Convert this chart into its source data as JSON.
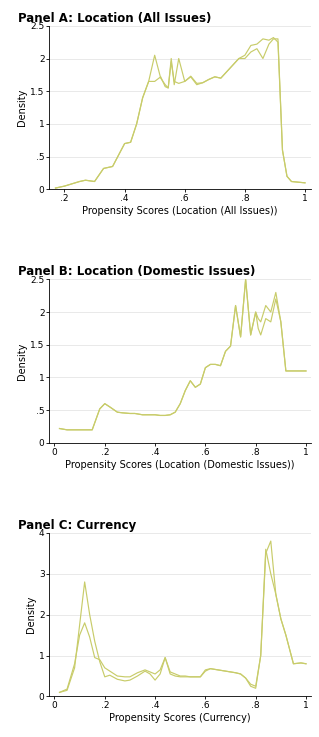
{
  "panel_a": {
    "title": "Panel A: Location (All Issues)",
    "xlabel": "Propensity Scores (Location (All Issues))",
    "ylabel": "Density",
    "ylim": [
      0,
      2.5
    ],
    "yticks": [
      0,
      0.5,
      1.0,
      1.5,
      2.0,
      2.5
    ],
    "ytick_labels": [
      "0",
      ".5",
      "1",
      "1.5",
      "2",
      "2.5"
    ],
    "xlim": [
      0.15,
      1.02
    ],
    "xticks": [
      0.2,
      0.4,
      0.6,
      0.8,
      1.0
    ],
    "xtick_labels": [
      ".2",
      ".4",
      ".6",
      ".8",
      "1"
    ],
    "line1_x": [
      0.17,
      0.2,
      0.25,
      0.27,
      0.3,
      0.33,
      0.36,
      0.4,
      0.42,
      0.44,
      0.46,
      0.48,
      0.5,
      0.52,
      0.535,
      0.545,
      0.555,
      0.565,
      0.58,
      0.6,
      0.62,
      0.64,
      0.66,
      0.68,
      0.7,
      0.72,
      0.74,
      0.76,
      0.78,
      0.8,
      0.82,
      0.84,
      0.86,
      0.88,
      0.895,
      0.91,
      0.925,
      0.94,
      0.955,
      1.0
    ],
    "line1_y": [
      0.02,
      0.05,
      0.12,
      0.14,
      0.12,
      0.32,
      0.35,
      0.7,
      0.72,
      1.0,
      1.4,
      1.65,
      2.05,
      1.7,
      1.6,
      1.55,
      1.95,
      1.65,
      1.62,
      1.65,
      1.72,
      1.6,
      1.63,
      1.68,
      1.72,
      1.7,
      1.8,
      1.9,
      2.0,
      2.05,
      2.2,
      2.22,
      2.3,
      2.28,
      2.32,
      2.25,
      0.6,
      0.2,
      0.12,
      0.1
    ],
    "line2_x": [
      0.17,
      0.2,
      0.25,
      0.27,
      0.3,
      0.33,
      0.36,
      0.4,
      0.42,
      0.44,
      0.46,
      0.48,
      0.5,
      0.52,
      0.535,
      0.545,
      0.555,
      0.565,
      0.58,
      0.6,
      0.62,
      0.64,
      0.66,
      0.68,
      0.7,
      0.72,
      0.74,
      0.76,
      0.78,
      0.8,
      0.82,
      0.84,
      0.86,
      0.88,
      0.895,
      0.91,
      0.925,
      0.94,
      0.955,
      1.0
    ],
    "line2_y": [
      0.02,
      0.05,
      0.12,
      0.14,
      0.12,
      0.32,
      0.35,
      0.7,
      0.72,
      1.0,
      1.4,
      1.65,
      1.65,
      1.72,
      1.57,
      1.55,
      2.0,
      1.6,
      2.0,
      1.65,
      1.73,
      1.62,
      1.63,
      1.68,
      1.72,
      1.7,
      1.8,
      1.9,
      2.0,
      2.0,
      2.1,
      2.15,
      2.0,
      2.22,
      2.3,
      2.3,
      0.6,
      0.2,
      0.12,
      0.1
    ],
    "line_color": "#c8cc6a"
  },
  "panel_b": {
    "title": "Panel B: Location (Domestic Issues)",
    "xlabel": "Propensity Scores (Location (Domestic Issues))",
    "ylabel": "Density",
    "ylim": [
      0,
      2.5
    ],
    "yticks": [
      0,
      0.5,
      1.0,
      1.5,
      2.0,
      2.5
    ],
    "ytick_labels": [
      "0",
      ".5",
      "1",
      "1.5",
      "2",
      "2.5"
    ],
    "xlim": [
      -0.02,
      1.02
    ],
    "xticks": [
      0,
      0.2,
      0.4,
      0.6,
      0.8,
      1.0
    ],
    "xtick_labels": [
      "0",
      ".2",
      ".4",
      ".6",
      ".8",
      "1"
    ],
    "line1_x": [
      0.02,
      0.05,
      0.08,
      0.1,
      0.15,
      0.18,
      0.2,
      0.22,
      0.25,
      0.27,
      0.3,
      0.32,
      0.35,
      0.38,
      0.4,
      0.42,
      0.44,
      0.46,
      0.48,
      0.5,
      0.52,
      0.54,
      0.56,
      0.58,
      0.6,
      0.62,
      0.64,
      0.66,
      0.68,
      0.7,
      0.72,
      0.74,
      0.76,
      0.78,
      0.8,
      0.81,
      0.82,
      0.84,
      0.86,
      0.88,
      0.9,
      0.92,
      0.95,
      0.98,
      1.0
    ],
    "line1_y": [
      0.22,
      0.2,
      0.2,
      0.2,
      0.2,
      0.52,
      0.6,
      0.55,
      0.47,
      0.46,
      0.45,
      0.45,
      0.43,
      0.43,
      0.43,
      0.42,
      0.42,
      0.43,
      0.47,
      0.6,
      0.8,
      0.95,
      0.85,
      0.9,
      1.15,
      1.2,
      1.2,
      1.18,
      1.4,
      1.48,
      2.1,
      1.62,
      2.5,
      1.65,
      2.0,
      1.9,
      1.85,
      2.1,
      2.0,
      2.3,
      1.85,
      1.1,
      1.1,
      1.1,
      1.1
    ],
    "line2_x": [
      0.02,
      0.05,
      0.08,
      0.1,
      0.15,
      0.18,
      0.2,
      0.22,
      0.25,
      0.27,
      0.3,
      0.32,
      0.35,
      0.38,
      0.4,
      0.42,
      0.44,
      0.46,
      0.48,
      0.5,
      0.52,
      0.54,
      0.56,
      0.58,
      0.6,
      0.62,
      0.64,
      0.66,
      0.68,
      0.7,
      0.72,
      0.74,
      0.76,
      0.78,
      0.8,
      0.81,
      0.82,
      0.84,
      0.86,
      0.88,
      0.9,
      0.92,
      0.95,
      0.98,
      1.0
    ],
    "line2_y": [
      0.22,
      0.2,
      0.2,
      0.2,
      0.2,
      0.52,
      0.6,
      0.55,
      0.47,
      0.46,
      0.45,
      0.45,
      0.43,
      0.43,
      0.43,
      0.42,
      0.42,
      0.43,
      0.47,
      0.6,
      0.8,
      0.95,
      0.85,
      0.9,
      1.15,
      1.2,
      1.2,
      1.18,
      1.4,
      1.48,
      2.1,
      1.62,
      2.5,
      1.65,
      2.0,
      1.75,
      1.65,
      1.9,
      1.85,
      2.2,
      1.85,
      1.1,
      1.1,
      1.1,
      1.1
    ],
    "line_color": "#c8cc6a"
  },
  "panel_c": {
    "title": "Panel C: Currency",
    "xlabel": "Propensity Scores (Currency)",
    "ylabel": "Density",
    "ylim": [
      0,
      4
    ],
    "yticks": [
      0,
      1,
      2,
      3,
      4
    ],
    "ytick_labels": [
      "0",
      "1",
      "2",
      "3",
      "4"
    ],
    "xlim": [
      -0.02,
      1.02
    ],
    "xticks": [
      0,
      0.2,
      0.4,
      0.6,
      0.8,
      1.0
    ],
    "xtick_labels": [
      "0",
      ".2",
      ".4",
      ".6",
      ".8",
      "1"
    ],
    "line1_x": [
      0.02,
      0.05,
      0.08,
      0.1,
      0.12,
      0.14,
      0.16,
      0.18,
      0.2,
      0.22,
      0.25,
      0.28,
      0.3,
      0.33,
      0.36,
      0.38,
      0.4,
      0.42,
      0.44,
      0.46,
      0.48,
      0.5,
      0.52,
      0.54,
      0.56,
      0.58,
      0.6,
      0.62,
      0.65,
      0.68,
      0.7,
      0.72,
      0.74,
      0.76,
      0.78,
      0.8,
      0.82,
      0.84,
      0.86,
      0.88,
      0.9,
      0.92,
      0.95,
      0.98,
      1.0
    ],
    "line1_y": [
      0.1,
      0.18,
      0.8,
      1.5,
      1.8,
      1.45,
      0.95,
      0.9,
      0.7,
      0.62,
      0.5,
      0.48,
      0.48,
      0.58,
      0.65,
      0.6,
      0.55,
      0.65,
      0.95,
      0.6,
      0.55,
      0.5,
      0.5,
      0.48,
      0.48,
      0.48,
      0.65,
      0.68,
      0.65,
      0.62,
      0.6,
      0.58,
      0.55,
      0.45,
      0.3,
      0.25,
      1.0,
      3.5,
      3.8,
      2.5,
      1.9,
      1.5,
      0.8,
      0.82,
      0.8
    ],
    "line2_x": [
      0.02,
      0.05,
      0.08,
      0.1,
      0.12,
      0.14,
      0.16,
      0.18,
      0.2,
      0.22,
      0.25,
      0.28,
      0.3,
      0.33,
      0.36,
      0.38,
      0.4,
      0.42,
      0.44,
      0.46,
      0.48,
      0.5,
      0.52,
      0.54,
      0.56,
      0.58,
      0.6,
      0.62,
      0.65,
      0.68,
      0.7,
      0.72,
      0.74,
      0.76,
      0.78,
      0.8,
      0.82,
      0.84,
      0.86,
      0.88,
      0.9,
      0.92,
      0.95,
      0.98,
      1.0
    ],
    "line2_y": [
      0.1,
      0.15,
      0.7,
      1.75,
      2.8,
      2.0,
      1.35,
      0.85,
      0.48,
      0.52,
      0.42,
      0.38,
      0.4,
      0.5,
      0.62,
      0.55,
      0.4,
      0.55,
      0.95,
      0.55,
      0.5,
      0.48,
      0.48,
      0.48,
      0.48,
      0.48,
      0.62,
      0.68,
      0.65,
      0.62,
      0.6,
      0.58,
      0.55,
      0.45,
      0.25,
      0.2,
      1.0,
      3.6,
      3.0,
      2.5,
      1.9,
      1.5,
      0.8,
      0.82,
      0.8
    ],
    "line_color": "#c8cc6a"
  },
  "bg_color": "#ffffff",
  "grid_color": "#e0e0e0",
  "title_fontsize": 8.5,
  "label_fontsize": 7,
  "tick_fontsize": 6.5
}
